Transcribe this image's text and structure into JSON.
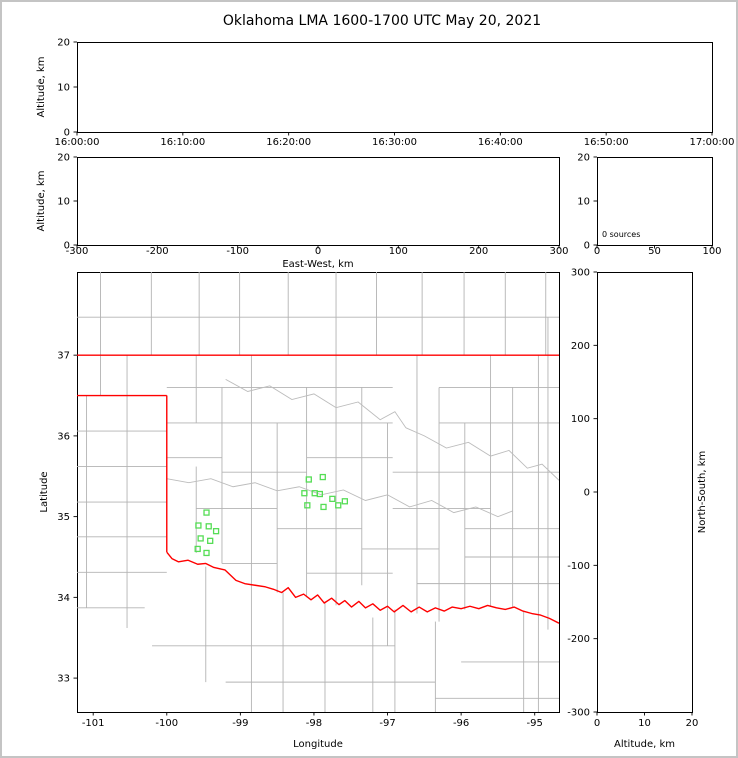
{
  "title": "Oklahoma LMA 1600-1700 UTC May 20, 2021",
  "colors": {
    "state_border": "#ff0000",
    "county": "#b3b3b3",
    "river": "#bcbcbc",
    "station": "#55dd55",
    "axis": "#000000",
    "figure_border": "#c4c4c4",
    "background": "#ffffff"
  },
  "chart_data": [
    {
      "id": "time_height",
      "type": "scatter",
      "title": "",
      "xlabel": "",
      "ylabel": "Altitude, km",
      "ylim": [
        0,
        20
      ],
      "yticks": [
        0,
        10,
        20
      ],
      "xtick_labels": [
        "16:00:00",
        "16:10:00",
        "16:20:00",
        "16:30:00",
        "16:40:00",
        "16:50:00",
        "17:00:00"
      ],
      "points": []
    },
    {
      "id": "ew_height",
      "type": "scatter",
      "xlabel": "East-West, km",
      "ylabel": "Altitude, km",
      "xlim": [
        -300,
        300
      ],
      "ylim": [
        0,
        20
      ],
      "xticks": [
        -300,
        -200,
        -100,
        0,
        100,
        200,
        300
      ],
      "yticks": [
        0,
        10,
        20
      ],
      "points": []
    },
    {
      "id": "source_histogram",
      "type": "bar",
      "xlabel": "",
      "ylabel": "",
      "xlim": [
        0,
        100
      ],
      "ylim": [
        0,
        20
      ],
      "xticks": [
        0,
        50,
        100
      ],
      "yticks": [
        0,
        10,
        20
      ],
      "annotation": "0 sources",
      "values": []
    },
    {
      "id": "plan_map",
      "type": "scatter",
      "xlabel": "Longitude",
      "ylabel": "Latitude",
      "xlim": [
        -101.22,
        -94.67
      ],
      "ylim": [
        32.58,
        38.03
      ],
      "xticks": [
        -101,
        -100,
        -99,
        -98,
        -97,
        -96,
        -95
      ],
      "yticks": [
        33,
        34,
        35,
        36,
        37
      ],
      "stations": [
        [
          -98.07,
          35.46
        ],
        [
          -97.88,
          35.49
        ],
        [
          -98.13,
          35.29
        ],
        [
          -97.99,
          35.29
        ],
        [
          -97.92,
          35.28
        ],
        [
          -98.09,
          35.14
        ],
        [
          -97.75,
          35.22
        ],
        [
          -97.87,
          35.12
        ],
        [
          -97.67,
          35.14
        ],
        [
          -97.58,
          35.19
        ],
        [
          -99.46,
          35.05
        ],
        [
          -99.57,
          34.89
        ],
        [
          -99.43,
          34.88
        ],
        [
          -99.33,
          34.82
        ],
        [
          -99.54,
          34.73
        ],
        [
          -99.41,
          34.7
        ],
        [
          -99.58,
          34.6
        ],
        [
          -99.46,
          34.55
        ]
      ],
      "red_border_lines": [
        [
          [
            -101.22,
            37.0
          ],
          [
            -94.67,
            37.0
          ]
        ],
        [
          [
            -101.22,
            36.5
          ],
          [
            -100.0,
            36.5
          ]
        ],
        [
          [
            -100.0,
            36.5
          ],
          [
            -100.0,
            34.56
          ]
        ],
        [
          [
            -100.0,
            34.56
          ],
          [
            -99.93,
            34.48
          ],
          [
            -99.84,
            34.44
          ],
          [
            -99.71,
            34.46
          ],
          [
            -99.58,
            34.41
          ],
          [
            -99.47,
            34.42
          ],
          [
            -99.36,
            34.37
          ],
          [
            -99.21,
            34.34
          ],
          [
            -99.06,
            34.21
          ],
          [
            -98.94,
            34.17
          ],
          [
            -98.8,
            34.15
          ],
          [
            -98.66,
            34.13
          ],
          [
            -98.55,
            34.1
          ],
          [
            -98.44,
            34.06
          ],
          [
            -98.35,
            34.12
          ],
          [
            -98.25,
            34.0
          ],
          [
            -98.14,
            34.04
          ],
          [
            -98.04,
            33.97
          ],
          [
            -97.95,
            34.03
          ],
          [
            -97.86,
            33.93
          ],
          [
            -97.76,
            33.99
          ],
          [
            -97.66,
            33.91
          ],
          [
            -97.58,
            33.96
          ],
          [
            -97.49,
            33.88
          ],
          [
            -97.39,
            33.95
          ],
          [
            -97.3,
            33.87
          ],
          [
            -97.2,
            33.92
          ],
          [
            -97.1,
            33.84
          ],
          [
            -97.0,
            33.89
          ],
          [
            -96.91,
            33.82
          ],
          [
            -96.79,
            33.9
          ],
          [
            -96.68,
            33.82
          ],
          [
            -96.57,
            33.88
          ],
          [
            -96.46,
            33.82
          ],
          [
            -96.35,
            33.87
          ],
          [
            -96.23,
            33.83
          ],
          [
            -96.12,
            33.88
          ],
          [
            -96.0,
            33.86
          ],
          [
            -95.88,
            33.89
          ],
          [
            -95.76,
            33.86
          ],
          [
            -95.64,
            33.9
          ],
          [
            -95.52,
            33.87
          ],
          [
            -95.4,
            33.85
          ],
          [
            -95.28,
            33.88
          ],
          [
            -95.16,
            33.83
          ],
          [
            -95.04,
            33.8
          ],
          [
            -94.92,
            33.78
          ],
          [
            -94.8,
            33.74
          ],
          [
            -94.67,
            33.68
          ]
        ]
      ],
      "county_segments": [
        [
          -101.22,
          37.47,
          -94.67,
          37.47
        ],
        [
          -100.9,
          36.5,
          -100.9,
          38.03
        ],
        [
          -100.21,
          37.0,
          -100.21,
          38.03
        ],
        [
          -99.56,
          37.0,
          -99.56,
          38.03
        ],
        [
          -99.01,
          37.0,
          -99.01,
          38.03
        ],
        [
          -98.35,
          37.0,
          -98.35,
          38.03
        ],
        [
          -97.7,
          37.0,
          -97.7,
          38.03
        ],
        [
          -97.15,
          37.0,
          -97.15,
          38.03
        ],
        [
          -96.53,
          37.0,
          -96.53,
          38.03
        ],
        [
          -95.96,
          37.0,
          -95.96,
          38.03
        ],
        [
          -95.4,
          37.0,
          -95.4,
          38.03
        ],
        [
          -94.85,
          37.0,
          -94.85,
          38.03
        ],
        [
          -100.54,
          33.62,
          -100.54,
          37.0
        ],
        [
          -101.09,
          33.87,
          -101.09,
          36.5
        ],
        [
          -101.22,
          36.06,
          -100.0,
          36.06
        ],
        [
          -101.22,
          35.62,
          -100.0,
          35.62
        ],
        [
          -101.22,
          35.18,
          -100.0,
          35.18
        ],
        [
          -101.22,
          34.75,
          -100.0,
          34.75
        ],
        [
          -101.22,
          34.31,
          -100.0,
          34.31
        ],
        [
          -101.22,
          33.87,
          -100.3,
          33.87
        ],
        [
          -100.0,
          36.6,
          -96.93,
          36.6
        ],
        [
          -96.3,
          36.6,
          -94.67,
          36.6
        ],
        [
          -100.0,
          36.16,
          -96.93,
          36.16
        ],
        [
          -96.3,
          36.16,
          -94.67,
          36.16
        ],
        [
          -99.6,
          36.16,
          -99.6,
          37.0
        ],
        [
          -99.6,
          34.55,
          -99.6,
          35.62
        ],
        [
          -99.25,
          34.42,
          -99.25,
          36.6
        ],
        [
          -98.85,
          32.58,
          -98.85,
          37.0
        ],
        [
          -98.5,
          34.06,
          -98.5,
          36.16
        ],
        [
          -98.1,
          34.0,
          -98.1,
          36.6
        ],
        [
          -97.7,
          33.9,
          -97.7,
          37.0
        ],
        [
          -97.35,
          34.15,
          -97.35,
          36.6
        ],
        [
          -97.0,
          33.4,
          -97.0,
          36.16
        ],
        [
          -96.6,
          33.8,
          -96.6,
          37.0
        ],
        [
          -96.3,
          33.7,
          -96.3,
          36.6
        ],
        [
          -95.95,
          33.85,
          -95.95,
          36.16
        ],
        [
          -95.6,
          33.88,
          -95.6,
          37.0
        ],
        [
          -95.3,
          33.87,
          -95.3,
          36.6
        ],
        [
          -94.95,
          32.58,
          -94.95,
          37.0
        ],
        [
          -94.82,
          33.6,
          -94.82,
          37.47
        ],
        [
          -100.0,
          35.73,
          -99.25,
          35.73
        ],
        [
          -99.25,
          35.55,
          -98.1,
          35.55
        ],
        [
          -98.1,
          35.73,
          -96.93,
          35.73
        ],
        [
          -96.93,
          35.55,
          -94.67,
          35.55
        ],
        [
          -99.6,
          35.1,
          -98.5,
          35.1
        ],
        [
          -98.5,
          34.85,
          -97.35,
          34.85
        ],
        [
          -97.35,
          34.6,
          -96.3,
          34.6
        ],
        [
          -96.93,
          35.1,
          -95.6,
          35.1
        ],
        [
          -95.95,
          34.85,
          -94.67,
          34.85
        ],
        [
          -99.25,
          34.42,
          -98.5,
          34.42
        ],
        [
          -98.1,
          34.3,
          -96.93,
          34.3
        ],
        [
          -96.6,
          34.17,
          -94.67,
          34.17
        ],
        [
          -95.95,
          34.5,
          -94.67,
          34.5
        ],
        [
          -100.2,
          33.4,
          -96.9,
          33.4
        ],
        [
          -99.2,
          32.95,
          -96.35,
          32.95
        ],
        [
          -99.47,
          32.95,
          -99.47,
          34.38
        ],
        [
          -98.42,
          32.58,
          -98.42,
          34.06
        ],
        [
          -97.85,
          32.58,
          -97.85,
          33.95
        ],
        [
          -97.2,
          32.58,
          -97.2,
          33.75
        ],
        [
          -96.9,
          32.58,
          -96.9,
          33.85
        ],
        [
          -96.35,
          32.58,
          -96.35,
          33.7
        ],
        [
          -96.0,
          33.2,
          -94.67,
          33.2
        ],
        [
          -95.15,
          32.58,
          -95.15,
          33.83
        ],
        [
          -96.35,
          32.75,
          -94.67,
          32.75
        ]
      ],
      "rivers": [
        [
          [
            -100.0,
            35.47
          ],
          [
            -99.7,
            35.42
          ],
          [
            -99.4,
            35.47
          ],
          [
            -99.1,
            35.37
          ],
          [
            -98.8,
            35.42
          ],
          [
            -98.5,
            35.32
          ],
          [
            -98.2,
            35.37
          ],
          [
            -97.9,
            35.27
          ],
          [
            -97.6,
            35.33
          ],
          [
            -97.3,
            35.2
          ],
          [
            -97.0,
            35.27
          ],
          [
            -96.7,
            35.12
          ],
          [
            -96.4,
            35.2
          ],
          [
            -96.1,
            35.05
          ],
          [
            -95.8,
            35.12
          ],
          [
            -95.5,
            35.0
          ],
          [
            -95.3,
            35.07
          ]
        ],
        [
          [
            -99.2,
            36.7
          ],
          [
            -98.9,
            36.55
          ],
          [
            -98.6,
            36.62
          ],
          [
            -98.3,
            36.45
          ],
          [
            -98.0,
            36.52
          ],
          [
            -97.7,
            36.35
          ],
          [
            -97.4,
            36.42
          ],
          [
            -97.1,
            36.2
          ],
          [
            -96.9,
            36.3
          ],
          [
            -96.75,
            36.1
          ]
        ],
        [
          [
            -96.75,
            36.1
          ],
          [
            -96.5,
            36.0
          ],
          [
            -96.2,
            35.85
          ],
          [
            -95.9,
            35.92
          ],
          [
            -95.6,
            35.75
          ],
          [
            -95.35,
            35.82
          ],
          [
            -95.1,
            35.6
          ],
          [
            -94.9,
            35.65
          ],
          [
            -94.67,
            35.45
          ]
        ]
      ]
    },
    {
      "id": "ns_height",
      "type": "scatter",
      "xlabel": "Altitude, km",
      "ylabel": "North-South, km",
      "xlim": [
        0,
        20
      ],
      "ylim": [
        -300,
        300
      ],
      "xticks": [
        0,
        10,
        20
      ],
      "yticks": [
        -300,
        -200,
        -100,
        0,
        100,
        200,
        300
      ],
      "points": []
    }
  ]
}
